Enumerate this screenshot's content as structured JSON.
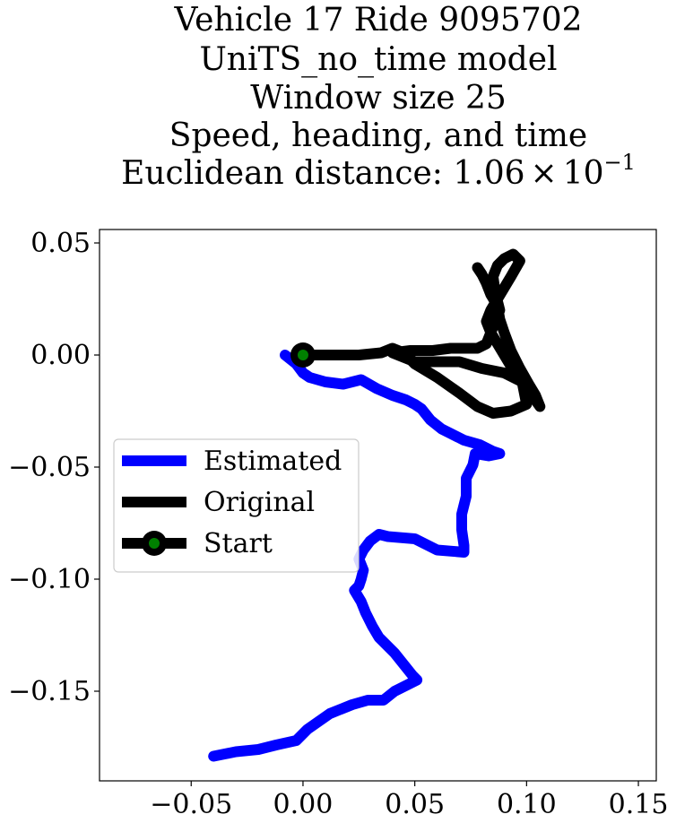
{
  "chart_data": {
    "type": "line",
    "title_lines": [
      "Vehicle 17 Ride 9095702",
      "UniTS_no_time model",
      "Window size 25",
      "Speed, heading, and time",
      "Euclidean distance: "
    ],
    "title_math": {
      "mantissa": "1.06",
      "times": "×",
      "base": "10",
      "exponent": "−1"
    },
    "xlim": [
      -0.091,
      0.158
    ],
    "ylim": [
      -0.19,
      0.056
    ],
    "xticks": [
      {
        "value": -0.05,
        "label": "−0.05"
      },
      {
        "value": 0.0,
        "label": "0.00"
      },
      {
        "value": 0.05,
        "label": "0.05"
      },
      {
        "value": 0.1,
        "label": "0.10"
      },
      {
        "value": 0.15,
        "label": "0.15"
      }
    ],
    "yticks": [
      {
        "value": 0.05,
        "label": "0.05"
      },
      {
        "value": 0.0,
        "label": "0.00"
      },
      {
        "value": -0.05,
        "label": "−0.05"
      },
      {
        "value": -0.1,
        "label": "−0.10"
      },
      {
        "value": -0.15,
        "label": "−0.15"
      }
    ],
    "grid": false,
    "legend_position": "center-left",
    "legend": [
      {
        "label": "Estimated",
        "color": "#0000ff",
        "kind": "line"
      },
      {
        "label": "Original",
        "color": "#000000",
        "kind": "line"
      },
      {
        "label": "Start",
        "color": "#000000",
        "marker_color": "#008000",
        "kind": "marker-line"
      }
    ],
    "series": [
      {
        "name": "Estimated",
        "color": "#0000ff",
        "x": [
          -0.008,
          -0.003,
          0.0,
          0.003,
          0.01,
          0.018,
          0.026,
          0.033,
          0.04,
          0.046,
          0.05,
          0.053,
          0.057,
          0.062,
          0.066,
          0.072,
          0.079,
          0.085,
          0.088,
          0.083,
          0.077,
          0.076,
          0.073,
          0.073,
          0.071,
          0.071,
          0.072,
          0.072,
          0.06,
          0.05,
          0.038,
          0.034,
          0.03,
          0.027,
          0.025,
          0.027,
          0.026,
          0.025,
          0.023,
          0.026,
          0.028,
          0.031,
          0.034,
          0.038,
          0.041,
          0.045,
          0.049,
          0.051,
          0.047,
          0.041,
          0.036,
          0.029,
          0.022,
          0.012,
          0.002,
          -0.003,
          -0.012,
          -0.02,
          -0.03,
          -0.04
        ],
        "y": [
          0.0,
          -0.004,
          -0.008,
          -0.01,
          -0.012,
          -0.013,
          -0.011,
          -0.015,
          -0.018,
          -0.02,
          -0.022,
          -0.024,
          -0.029,
          -0.033,
          -0.035,
          -0.038,
          -0.04,
          -0.043,
          -0.044,
          -0.045,
          -0.044,
          -0.049,
          -0.055,
          -0.063,
          -0.071,
          -0.078,
          -0.085,
          -0.088,
          -0.087,
          -0.082,
          -0.081,
          -0.08,
          -0.083,
          -0.087,
          -0.091,
          -0.096,
          -0.1,
          -0.103,
          -0.105,
          -0.11,
          -0.115,
          -0.121,
          -0.126,
          -0.13,
          -0.133,
          -0.138,
          -0.143,
          -0.145,
          -0.147,
          -0.15,
          -0.154,
          -0.154,
          -0.156,
          -0.16,
          -0.167,
          -0.172,
          -0.174,
          -0.176,
          -0.177,
          -0.179
        ]
      },
      {
        "name": "Original",
        "color": "#000000",
        "x": [
          0.0,
          0.012,
          0.025,
          0.035,
          0.04,
          0.045,
          0.05,
          0.06,
          0.07,
          0.078,
          0.085,
          0.093,
          0.1,
          0.098,
          0.09,
          0.08,
          0.07,
          0.06,
          0.05,
          0.045,
          0.04,
          0.048,
          0.058,
          0.066,
          0.073,
          0.078,
          0.082,
          0.084,
          0.086,
          0.088,
          0.086,
          0.085,
          0.087,
          0.09,
          0.094,
          0.097,
          0.093,
          0.09,
          0.087,
          0.084,
          0.082,
          0.084,
          0.087,
          0.09,
          0.093,
          0.096,
          0.101,
          0.106,
          0.104,
          0.101,
          0.097,
          0.093,
          0.09,
          0.088,
          0.087,
          0.084,
          0.082,
          0.08,
          0.078
        ],
        "y": [
          0.0,
          0.0,
          0.0,
          0.001,
          0.003,
          0.001,
          -0.004,
          -0.01,
          -0.017,
          -0.023,
          -0.026,
          -0.025,
          -0.022,
          -0.012,
          -0.008,
          -0.006,
          -0.003,
          -0.003,
          -0.003,
          -0.001,
          0.001,
          0.002,
          0.002,
          0.003,
          0.003,
          0.003,
          0.005,
          0.01,
          0.015,
          0.02,
          0.028,
          0.035,
          0.04,
          0.043,
          0.045,
          0.042,
          0.035,
          0.03,
          0.025,
          0.02,
          0.015,
          0.01,
          0.005,
          0.0,
          -0.005,
          -0.01,
          -0.016,
          -0.023,
          -0.018,
          -0.013,
          -0.006,
          0.002,
          0.01,
          0.016,
          0.022,
          0.027,
          0.032,
          0.036,
          0.039
        ]
      }
    ],
    "start_point": {
      "x": 0.0,
      "y": 0.0,
      "outer_color": "#000000",
      "inner_color": "#008000"
    }
  }
}
